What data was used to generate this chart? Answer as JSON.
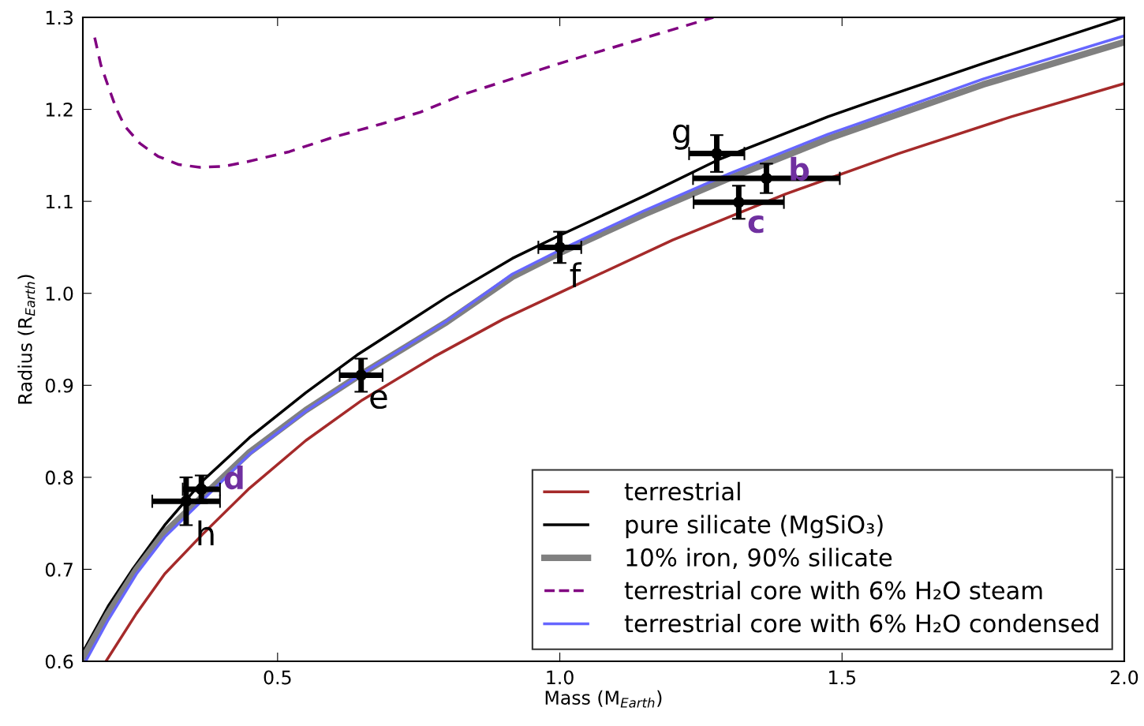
{
  "chart_data": {
    "type": "line",
    "xlabel": "Mass (M$_{Earth}$)",
    "ylabel": "Radius (R$_{Earth}$)",
    "xlim": [
      0.155,
      2.0
    ],
    "ylim": [
      0.6,
      1.3
    ],
    "xticks": [
      0.5,
      {
        "value": 1,
        "label": "1.0"
      },
      1.5,
      {
        "value": 2,
        "label": "2.0"
      }
    ],
    "yticks": [
      0.6,
      0.7,
      0.8,
      0.9,
      {
        "value": 1,
        "label": "1.0"
      },
      1.1,
      1.2,
      1.3
    ],
    "legend": "lower right",
    "grid": false,
    "series": [
      {
        "name": "terrestrial",
        "color": "#a52a2a",
        "line_style": "solid",
        "x": [
          0.196,
          0.25,
          0.3,
          0.367,
          0.45,
          0.55,
          0.65,
          0.777,
          0.9,
          1.032,
          1.2,
          1.4,
          1.6,
          1.8,
          2.0
        ],
        "values": [
          0.6,
          0.652,
          0.695,
          0.738,
          0.788,
          0.84,
          0.884,
          0.931,
          0.972,
          1.01,
          1.058,
          1.108,
          1.152,
          1.192,
          1.228
        ]
      },
      {
        "name": "pure silicate (MgSiO₃)",
        "color": "#000000",
        "line_style": "solid",
        "x": [
          0.155,
          0.2,
          0.242,
          0.3,
          0.367,
          0.45,
          0.55,
          0.641,
          0.8,
          0.916,
          1.0,
          1.15,
          1.28,
          1.475,
          1.545,
          1.75,
          2.0
        ],
        "values": [
          0.61,
          0.66,
          0.699,
          0.748,
          0.796,
          0.843,
          0.892,
          0.933,
          0.996,
          1.038,
          1.063,
          1.106,
          1.145,
          1.192,
          1.207,
          1.25,
          1.3
        ]
      },
      {
        "name": "10% iron, 90% silicate",
        "color": "#808080",
        "line_style": "solid",
        "x": [
          0.155,
          0.2,
          0.25,
          0.3,
          0.367,
          0.45,
          0.55,
          0.648,
          0.8,
          0.916,
          1.0,
          1.15,
          1.3,
          1.475,
          1.545,
          1.75,
          2.0
        ],
        "values": [
          0.603,
          0.652,
          0.7,
          0.74,
          0.779,
          0.827,
          0.873,
          0.912,
          0.969,
          1.018,
          1.044,
          1.086,
          1.125,
          1.168,
          1.183,
          1.227,
          1.273
        ]
      },
      {
        "name": "terrestrial core with 6% H₂O steam",
        "color": "#800080",
        "line_style": "dashed",
        "x": [
          0.176,
          0.187,
          0.2,
          0.214,
          0.229,
          0.256,
          0.288,
          0.325,
          0.362,
          0.404,
          0.446,
          0.521,
          0.595,
          0.683,
          0.753,
          0.828,
          1.0,
          1.272
        ],
        "values": [
          1.278,
          1.248,
          1.225,
          1.201,
          1.182,
          1.163,
          1.149,
          1.14,
          1.137,
          1.138,
          1.143,
          1.154,
          1.169,
          1.184,
          1.197,
          1.216,
          1.25,
          1.3
        ]
      },
      {
        "name": "terrestrial core with 6% H₂O condensed",
        "color": "#6666ff",
        "line_style": "solid",
        "x": [
          0.16,
          0.2,
          0.25,
          0.3,
          0.367,
          0.45,
          0.55,
          0.648,
          0.8,
          0.916,
          1.0,
          1.15,
          1.3,
          1.475,
          1.545,
          1.75,
          2.0
        ],
        "values": [
          0.6,
          0.645,
          0.695,
          0.735,
          0.775,
          0.825,
          0.872,
          0.912,
          0.97,
          1.021,
          1.047,
          1.09,
          1.13,
          1.173,
          1.188,
          1.233,
          1.28
        ]
      },
      {
        "type": "scatter",
        "color": "#000000",
        "marker": "circle",
        "x": [
          1.366,
          1.317,
          0.365
        ],
        "values": [
          1.125,
          1.099,
          0.787
        ],
        "xerrors": [
          0.13,
          0.08,
          0.033
        ],
        "errors": [
          0.016,
          0.018,
          0.015
        ],
        "value_labels": [
          "b",
          "c",
          "d"
        ]
      },
      {
        "type": "scatter",
        "color": "#000000",
        "marker": "circle",
        "x": [
          0.648,
          1.0,
          1.278,
          0.338
        ],
        "values": [
          0.911,
          1.05,
          1.152,
          0.774
        ],
        "xerrors": [
          0.038,
          0.038,
          0.049,
          0.06
        ],
        "errors": [
          0.018,
          0.017,
          0.02,
          0.026
        ],
        "value_labels": [
          "e",
          "f",
          "g",
          "h"
        ]
      }
    ]
  }
}
